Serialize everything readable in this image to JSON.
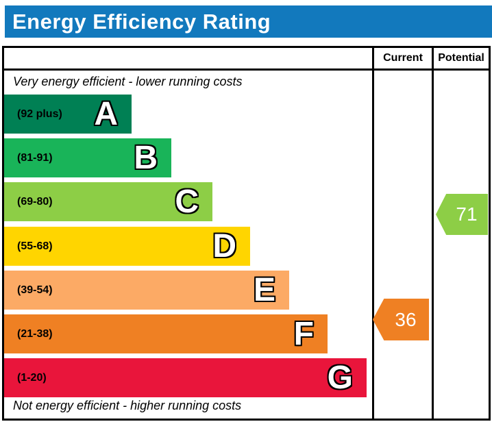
{
  "header": {
    "title": "Energy Efficiency Rating",
    "background": "#1279bd"
  },
  "columns": {
    "current": "Current",
    "potential": "Potential"
  },
  "notes": {
    "top": "Very energy efficient - lower running costs",
    "bottom": "Not energy efficient - higher running costs"
  },
  "bands": [
    {
      "letter": "A",
      "range": "(92 plus)",
      "color": "#008054"
    },
    {
      "letter": "B",
      "range": "(81-91)",
      "color": "#19b459"
    },
    {
      "letter": "C",
      "range": "(69-80)",
      "color": "#8dce46"
    },
    {
      "letter": "D",
      "range": "(55-68)",
      "color": "#ffd500"
    },
    {
      "letter": "E",
      "range": "(39-54)",
      "color": "#fcaa65"
    },
    {
      "letter": "F",
      "range": "(21-38)",
      "color": "#ef8023"
    },
    {
      "letter": "G",
      "range": "(1-20)",
      "color": "#e9153b"
    }
  ],
  "ratings": {
    "current": {
      "value": "36",
      "band": "F",
      "color": "#ef8023"
    },
    "potential": {
      "value": "71",
      "band": "C",
      "color": "#8dce46"
    }
  },
  "chart_data": {
    "type": "bar",
    "title": "Energy Efficiency Rating",
    "categories": [
      "A (92 plus)",
      "B (81-91)",
      "C (69-80)",
      "D (55-68)",
      "E (39-54)",
      "F (21-38)",
      "G (1-20)"
    ],
    "band_ranges": [
      [
        92,
        100
      ],
      [
        81,
        91
      ],
      [
        69,
        80
      ],
      [
        55,
        68
      ],
      [
        39,
        54
      ],
      [
        21,
        38
      ],
      [
        1,
        20
      ]
    ],
    "band_colors": [
      "#008054",
      "#19b459",
      "#8dce46",
      "#ffd500",
      "#fcaa65",
      "#ef8023",
      "#e9153b"
    ],
    "columns": [
      "Current",
      "Potential"
    ],
    "series": [
      {
        "name": "Current",
        "values": [
          36
        ],
        "band": "F"
      },
      {
        "name": "Potential",
        "values": [
          71
        ],
        "band": "C"
      }
    ],
    "annotations": [
      "Very energy efficient - lower running costs",
      "Not energy efficient - higher running costs"
    ],
    "legend_position": "none",
    "grid": false
  }
}
